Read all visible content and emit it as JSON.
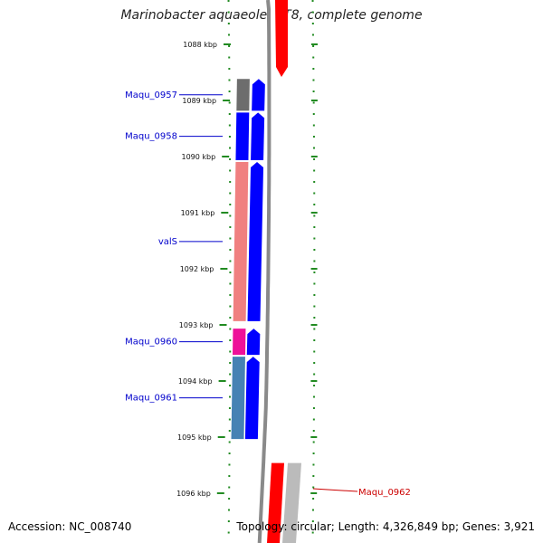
{
  "title": "Marinobacter aquaeolei VT8, complete genome",
  "accession_text": "Accession: NC_008740",
  "summary_text": "Topology: circular; Length: 4,326,849 bp; Genes: 3,921",
  "ticks": [
    {
      "label": "1088 kbp",
      "kb": 1088
    },
    {
      "label": "1089 kbp",
      "kb": 1089
    },
    {
      "label": "1090 kbp",
      "kb": 1090
    },
    {
      "label": "1091 kbp",
      "kb": 1091
    },
    {
      "label": "1092 kbp",
      "kb": 1092
    },
    {
      "label": "1093 kbp",
      "kb": 1093
    },
    {
      "label": "1094 kbp",
      "kb": 1094
    },
    {
      "label": "1095 kbp",
      "kb": 1095
    },
    {
      "label": "1096 kbp",
      "kb": 1096
    }
  ],
  "genes": [
    {
      "label": "Maqu_0957",
      "start_kb": 1088.6,
      "end_kb": 1089.2,
      "feature_color": "#6d6d6d",
      "label_color": "#0000cc"
    },
    {
      "label": "Maqu_0958",
      "start_kb": 1089.2,
      "end_kb": 1090.08,
      "feature_color": "#0000ff",
      "label_color": "#0000cc"
    },
    {
      "label": "valS",
      "start_kb": 1090.08,
      "end_kb": 1092.95,
      "feature_color": "#f08080",
      "label_color": "#0000cc"
    },
    {
      "label": "Maqu_0960",
      "start_kb": 1093.05,
      "end_kb": 1093.55,
      "feature_color": "#ee1199",
      "label_color": "#0000cc"
    },
    {
      "label": "Maqu_0961",
      "start_kb": 1093.55,
      "end_kb": 1095.05,
      "feature_color": "#4682b4",
      "label_color": "#0000cc"
    },
    {
      "label": "Maqu_0962",
      "start_kb": 1095.3,
      "end_kb": 1097.0,
      "feature_color": "#bbbbbb",
      "label_color": "#cc0000"
    }
  ]
}
